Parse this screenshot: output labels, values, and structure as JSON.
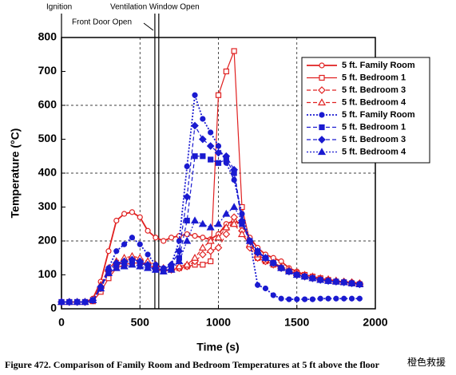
{
  "chart_data": {
    "type": "line",
    "x_label": "Time (s)",
    "y_label": "Temperature (°C)",
    "caption": "Figure 472.  Comparison of Family Room and Bedroom Temperatures at 5 ft above the floor",
    "watermark": "橙色救援",
    "xlim": [
      0,
      2000
    ],
    "xticks": [
      0,
      500,
      1000,
      1500,
      2000
    ],
    "ylim": [
      0,
      800
    ],
    "yticks": [
      0,
      100,
      200,
      300,
      400,
      500,
      600,
      700,
      800
    ],
    "grid": true,
    "legend_position": "upper right",
    "events": [
      {
        "label": "Ignition",
        "x": 0
      },
      {
        "label": "Front Door Open",
        "x": 595
      },
      {
        "label": "Ventilation Window Open",
        "x": 620
      }
    ],
    "x": [
      0,
      50,
      100,
      150,
      200,
      250,
      300,
      350,
      400,
      450,
      500,
      550,
      600,
      650,
      700,
      750,
      800,
      850,
      900,
      950,
      1000,
      1050,
      1100,
      1150,
      1200,
      1250,
      1300,
      1350,
      1400,
      1450,
      1500,
      1550,
      1600,
      1650,
      1700,
      1750,
      1800,
      1850,
      1900
    ],
    "series": [
      {
        "name": "5 ft. Family Room",
        "color": "#e02020",
        "marker": "circle",
        "filled": false,
        "dash": "solid",
        "values": [
          20,
          20,
          20,
          20,
          30,
          80,
          170,
          260,
          280,
          285,
          270,
          230,
          210,
          200,
          210,
          215,
          220,
          215,
          210,
          205,
          220,
          250,
          260,
          250,
          210,
          180,
          160,
          150,
          140,
          120,
          110,
          100,
          95,
          90,
          85,
          80,
          80,
          78,
          75
        ]
      },
      {
        "name": "5 ft. Bedroom 1",
        "color": "#e02020",
        "marker": "square",
        "filled": false,
        "dash": "solid",
        "values": [
          20,
          20,
          20,
          20,
          22,
          50,
          90,
          120,
          130,
          135,
          135,
          130,
          120,
          110,
          115,
          120,
          125,
          130,
          130,
          140,
          630,
          700,
          760,
          300,
          200,
          150,
          140,
          130,
          120,
          110,
          105,
          100,
          95,
          90,
          85,
          80,
          78,
          75,
          72
        ]
      },
      {
        "name": "5 ft. Bedroom 3",
        "color": "#e02020",
        "marker": "diamond",
        "filled": false,
        "dash": "dashed",
        "values": [
          20,
          20,
          20,
          20,
          25,
          60,
          110,
          130,
          140,
          145,
          140,
          130,
          120,
          115,
          115,
          120,
          125,
          140,
          160,
          170,
          180,
          220,
          270,
          230,
          180,
          150,
          140,
          130,
          120,
          110,
          100,
          95,
          90,
          88,
          85,
          82,
          80,
          78,
          75
        ]
      },
      {
        "name": "5 ft. Bedroom 4",
        "color": "#e02020",
        "marker": "triangle",
        "filled": false,
        "dash": "dashed",
        "values": [
          20,
          20,
          20,
          20,
          25,
          70,
          120,
          140,
          150,
          155,
          150,
          140,
          130,
          120,
          120,
          125,
          130,
          150,
          180,
          200,
          210,
          240,
          250,
          220,
          190,
          160,
          145,
          135,
          125,
          115,
          105,
          100,
          95,
          90,
          87,
          83,
          80,
          78,
          75
        ]
      },
      {
        "name": "5 ft. Family Room",
        "color": "#1a1ad0",
        "marker": "circle",
        "filled": true,
        "dash": "dotted",
        "values": [
          20,
          20,
          20,
          20,
          25,
          60,
          120,
          170,
          190,
          210,
          190,
          160,
          130,
          120,
          130,
          200,
          420,
          630,
          560,
          520,
          480,
          430,
          380,
          280,
          200,
          70,
          60,
          40,
          30,
          28,
          28,
          28,
          28,
          30,
          30,
          30,
          30,
          30,
          30
        ]
      },
      {
        "name": "5 ft. Bedroom 1",
        "color": "#1a1ad0",
        "marker": "square",
        "filled": true,
        "dash": "dashed",
        "values": [
          20,
          20,
          20,
          20,
          25,
          60,
          110,
          130,
          135,
          140,
          135,
          125,
          115,
          110,
          120,
          150,
          260,
          450,
          450,
          440,
          430,
          440,
          400,
          250,
          200,
          170,
          150,
          135,
          120,
          110,
          100,
          95,
          90,
          85,
          82,
          80,
          78,
          75,
          72
        ]
      },
      {
        "name": "5 ft. Bedroom 3",
        "color": "#1a1ad0",
        "marker": "diamond",
        "filled": true,
        "dash": "dashed",
        "values": [
          20,
          20,
          20,
          20,
          25,
          65,
          115,
          135,
          140,
          145,
          140,
          130,
          120,
          115,
          130,
          170,
          330,
          540,
          500,
          480,
          460,
          450,
          410,
          260,
          200,
          165,
          150,
          135,
          120,
          110,
          100,
          95,
          90,
          85,
          82,
          80,
          78,
          75,
          72
        ]
      },
      {
        "name": "5 ft. Bedroom 4",
        "color": "#1a1ad0",
        "marker": "triangle",
        "filled": true,
        "dash": "dotted",
        "values": [
          20,
          20,
          20,
          20,
          25,
          60,
          105,
          120,
          125,
          130,
          125,
          120,
          115,
          110,
          115,
          140,
          200,
          260,
          250,
          240,
          250,
          280,
          300,
          260,
          200,
          170,
          150,
          135,
          120,
          110,
          100,
          95,
          90,
          85,
          82,
          80,
          78,
          75,
          72
        ]
      }
    ]
  }
}
